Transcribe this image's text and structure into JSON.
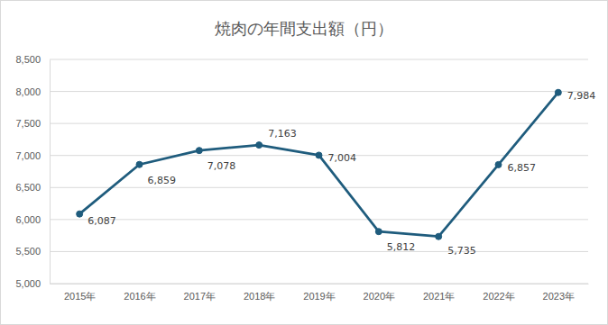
{
  "chart_data": {
    "type": "line",
    "title": "焼肉の年間支出額（円）",
    "categories": [
      "2015年",
      "2016年",
      "2017年",
      "2018年",
      "2019年",
      "2020年",
      "2021年",
      "2022年",
      "2023年"
    ],
    "values": [
      6087,
      6859,
      7078,
      7163,
      7004,
      5812,
      5735,
      6857,
      7984
    ],
    "value_labels": [
      "6,087",
      "6,859",
      "7,078",
      "7,163",
      "7,004",
      "5,812",
      "5,735",
      "6,857",
      "7,984"
    ],
    "color": "#1f5c7d",
    "marker": "circle",
    "line_style": "solid",
    "data_labels": true,
    "grid": true,
    "ylim": [
      5000,
      8500
    ],
    "yticks": [
      {
        "value": 5000,
        "label": "5,000"
      },
      {
        "value": 5500,
        "label": "5,500"
      },
      {
        "value": 6000,
        "label": "6,000"
      },
      {
        "value": 6500,
        "label": "6,500"
      },
      {
        "value": 7000,
        "label": "7,000"
      },
      {
        "value": 7500,
        "label": "7,500"
      },
      {
        "value": 8000,
        "label": "8,000"
      },
      {
        "value": 8500,
        "label": "8,500"
      }
    ]
  }
}
